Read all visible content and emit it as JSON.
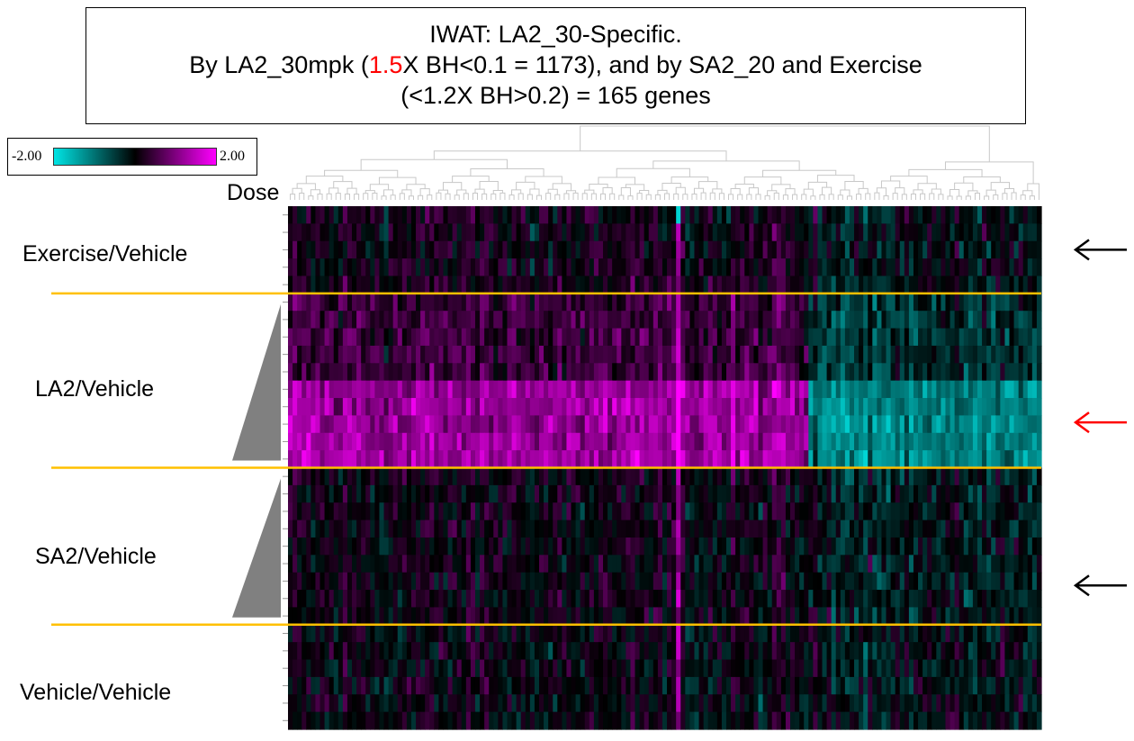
{
  "title": {
    "line1": "IWAT: LA2_30-Specific.",
    "line2_pre": "By LA2_30mpk (",
    "line2_highlight": "1.5",
    "line2_post": "X BH<0.1 = 1173), and by SA2_20 and Exercise",
    "line3": "(<1.2X BH>0.2) = 165 genes"
  },
  "colors": {
    "low": "#00e5e5",
    "mid": "#000000",
    "high": "#ff00ff",
    "separator": "#ffc000",
    "highlight_text": "#ff0000",
    "arrow_black": "#000000",
    "arrow_red": "#ff0000",
    "triangle": "#808080",
    "dendrogram": "#c8c8c8"
  },
  "color_scale": {
    "min_label": "-2.00",
    "max_label": "2.00"
  },
  "dose_label": "Dose",
  "chart_data": {
    "type": "heatmap",
    "genes": 165,
    "value_range": [
      -2.0,
      2.0
    ],
    "groups": [
      {
        "name": "Exercise/Vehicle",
        "rows": 5,
        "arrow": "black",
        "dose_triangle": false
      },
      {
        "name": "LA2/Vehicle",
        "rows": 10,
        "arrow": "red",
        "dose_triangle": true
      },
      {
        "name": "SA2/Vehicle",
        "rows": 9,
        "arrow": "black",
        "dose_triangle": true
      },
      {
        "name": "Vehicle/Vehicle",
        "rows": 6,
        "arrow": null,
        "dose_triangle": false
      }
    ],
    "column_cluster_split_fraction": 0.69,
    "patterns": [
      {
        "group": "Exercise/Vehicle",
        "left_cluster_mean": 0.15,
        "right_cluster_mean": -0.15
      },
      {
        "group": "LA2/Vehicle",
        "left_cluster_mean": 0.55,
        "right_cluster_mean": -0.5
      },
      {
        "group": "SA2/Vehicle",
        "left_cluster_mean": 0.1,
        "right_cluster_mean": -0.25
      },
      {
        "group": "Vehicle/Vehicle",
        "left_cluster_mean": 0.0,
        "right_cluster_mean": -0.1
      }
    ]
  }
}
